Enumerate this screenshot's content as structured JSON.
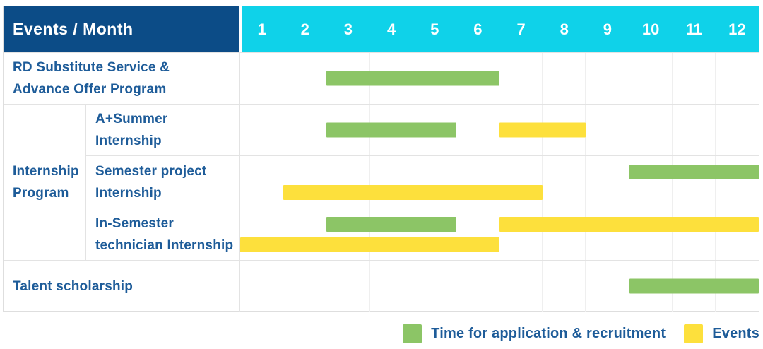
{
  "colors": {
    "navy": "#0C4C87",
    "cyan": "#0FD2E9",
    "green": "#8CC566",
    "yellow": "#FDE03C",
    "text_blue": "#1E5C99",
    "header_text": "#FFFFFF",
    "grid_major": "#E3E3E3",
    "grid_minor": "#EFEFEF",
    "border": "#DEDEDE"
  },
  "header": {
    "title": "Events / Month"
  },
  "chart_data": {
    "type": "table",
    "subtype": "gantt-timeline",
    "title": "Events / Month",
    "x": {
      "unit": "month",
      "range": [
        1,
        12
      ],
      "ticks": [
        "1",
        "2",
        "3",
        "4",
        "5",
        "6",
        "7",
        "8",
        "9",
        "10",
        "11",
        "12"
      ]
    },
    "groups": [
      {
        "id": "internship-program",
        "label": "Internship Program",
        "label_lines": [
          "Internship",
          "Program"
        ],
        "rows": [
          1,
          2,
          3
        ]
      }
    ],
    "rows": [
      {
        "id": "rd-substitute-service",
        "label": "RD Substitute Service & Advance Offer Program",
        "label_lines": [
          "RD Substitute Service &",
          "Advance Offer Program"
        ],
        "indent": false,
        "lanes": 1,
        "bars": [
          {
            "series": "Time for application & recruitment",
            "color": "green",
            "start_month": 3,
            "end_month": 6,
            "lane": "center"
          }
        ]
      },
      {
        "id": "a-plus-summer-internship",
        "label": "A+Summer Internship",
        "label_lines": [
          "A+Summer",
          "Internship"
        ],
        "indent": true,
        "lanes": 1,
        "bars": [
          {
            "series": "Time for application & recruitment",
            "color": "green",
            "start_month": 3,
            "end_month": 5,
            "lane": "center"
          },
          {
            "series": "Events",
            "color": "yellow",
            "start_month": 7,
            "end_month": 8,
            "lane": "center"
          }
        ]
      },
      {
        "id": "semester-project-internship",
        "label": "Semester project Internship",
        "label_lines": [
          "Semester project",
          "Internship"
        ],
        "indent": true,
        "lanes": 2,
        "bars": [
          {
            "series": "Time for application & recruitment",
            "color": "green",
            "start_month": 10,
            "end_month": 12,
            "lane": "top"
          },
          {
            "series": "Events",
            "color": "yellow",
            "start_month": 2,
            "end_month": 7,
            "lane": "bottom"
          }
        ]
      },
      {
        "id": "in-semester-technician-internship",
        "label": "In-Semester technician Internship",
        "label_lines": [
          "In-Semester",
          "technician Internship"
        ],
        "indent": true,
        "lanes": 2,
        "bars": [
          {
            "series": "Time for application & recruitment",
            "color": "green",
            "start_month": 3,
            "end_month": 5,
            "lane": "top"
          },
          {
            "series": "Events",
            "color": "yellow",
            "start_month": 7,
            "end_month": 12,
            "lane": "top"
          },
          {
            "series": "Events",
            "color": "yellow",
            "start_month": 1,
            "end_month": 6,
            "lane": "bottom"
          }
        ]
      },
      {
        "id": "talent-scholarship",
        "label": "Talent scholarship",
        "label_lines": [
          "Talent scholarship"
        ],
        "indent": false,
        "lanes": 1,
        "bars": [
          {
            "series": "Time for application & recruitment",
            "color": "green",
            "start_month": 10,
            "end_month": 12,
            "lane": "center"
          }
        ]
      }
    ],
    "legend": [
      {
        "label": "Time for application & recruitment",
        "color": "green"
      },
      {
        "label": "Events",
        "color": "yellow"
      }
    ]
  }
}
